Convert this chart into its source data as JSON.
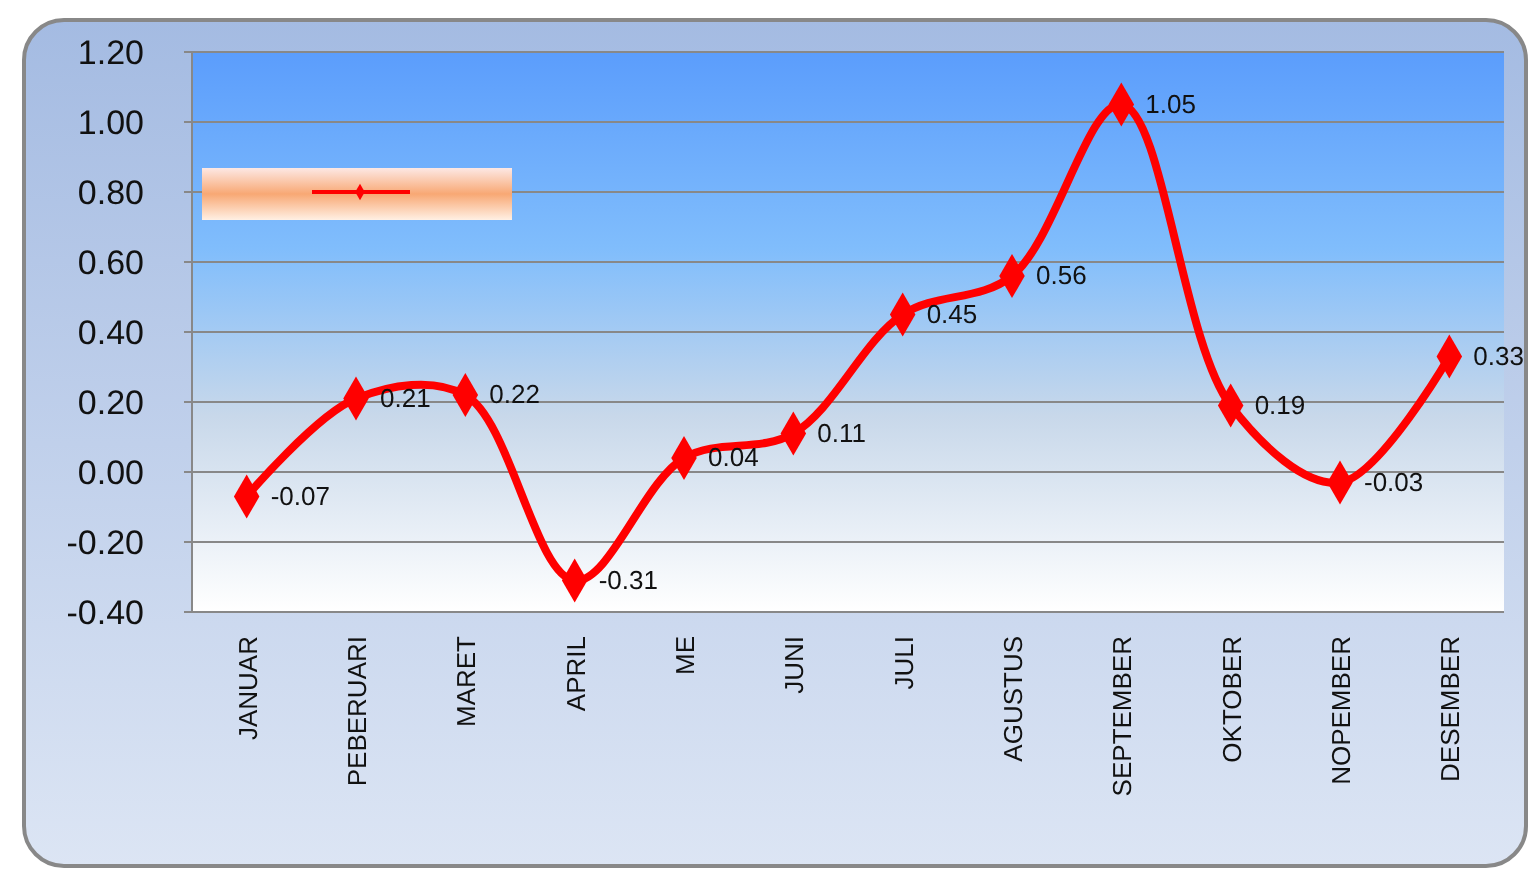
{
  "chart_data": {
    "type": "line",
    "categories": [
      "JANUAR",
      "PEBERUARI",
      "MARET",
      "APRIL",
      "ME",
      "JUNI",
      "JULI",
      "AGUSTUS",
      "SEPTEMBER",
      "OKTOBER",
      "NOPEMBER",
      "DESEMBER"
    ],
    "series": [
      {
        "color": "#ff0000",
        "values": [
          -0.07,
          0.21,
          0.22,
          -0.31,
          0.04,
          0.11,
          0.45,
          0.56,
          1.05,
          0.19,
          -0.03,
          0.33
        ]
      }
    ],
    "ylim": [
      -0.4,
      1.2
    ],
    "yticks": [
      {
        "value": -0.4,
        "label": "-0.40"
      },
      {
        "value": -0.2,
        "label": "-0.20"
      },
      {
        "value": 0,
        "label": "0.00"
      },
      {
        "value": 0.2,
        "label": "0.20"
      },
      {
        "value": 0.4,
        "label": "0.40"
      },
      {
        "value": 0.6,
        "label": "0.60"
      },
      {
        "value": 0.8,
        "label": "0.80"
      },
      {
        "value": 1.0,
        "label": "1.00"
      },
      {
        "value": 1.2,
        "label": "1.20"
      }
    ],
    "grid": "y",
    "marker": "diamond",
    "line_style": "solid",
    "data_labels": true
  }
}
